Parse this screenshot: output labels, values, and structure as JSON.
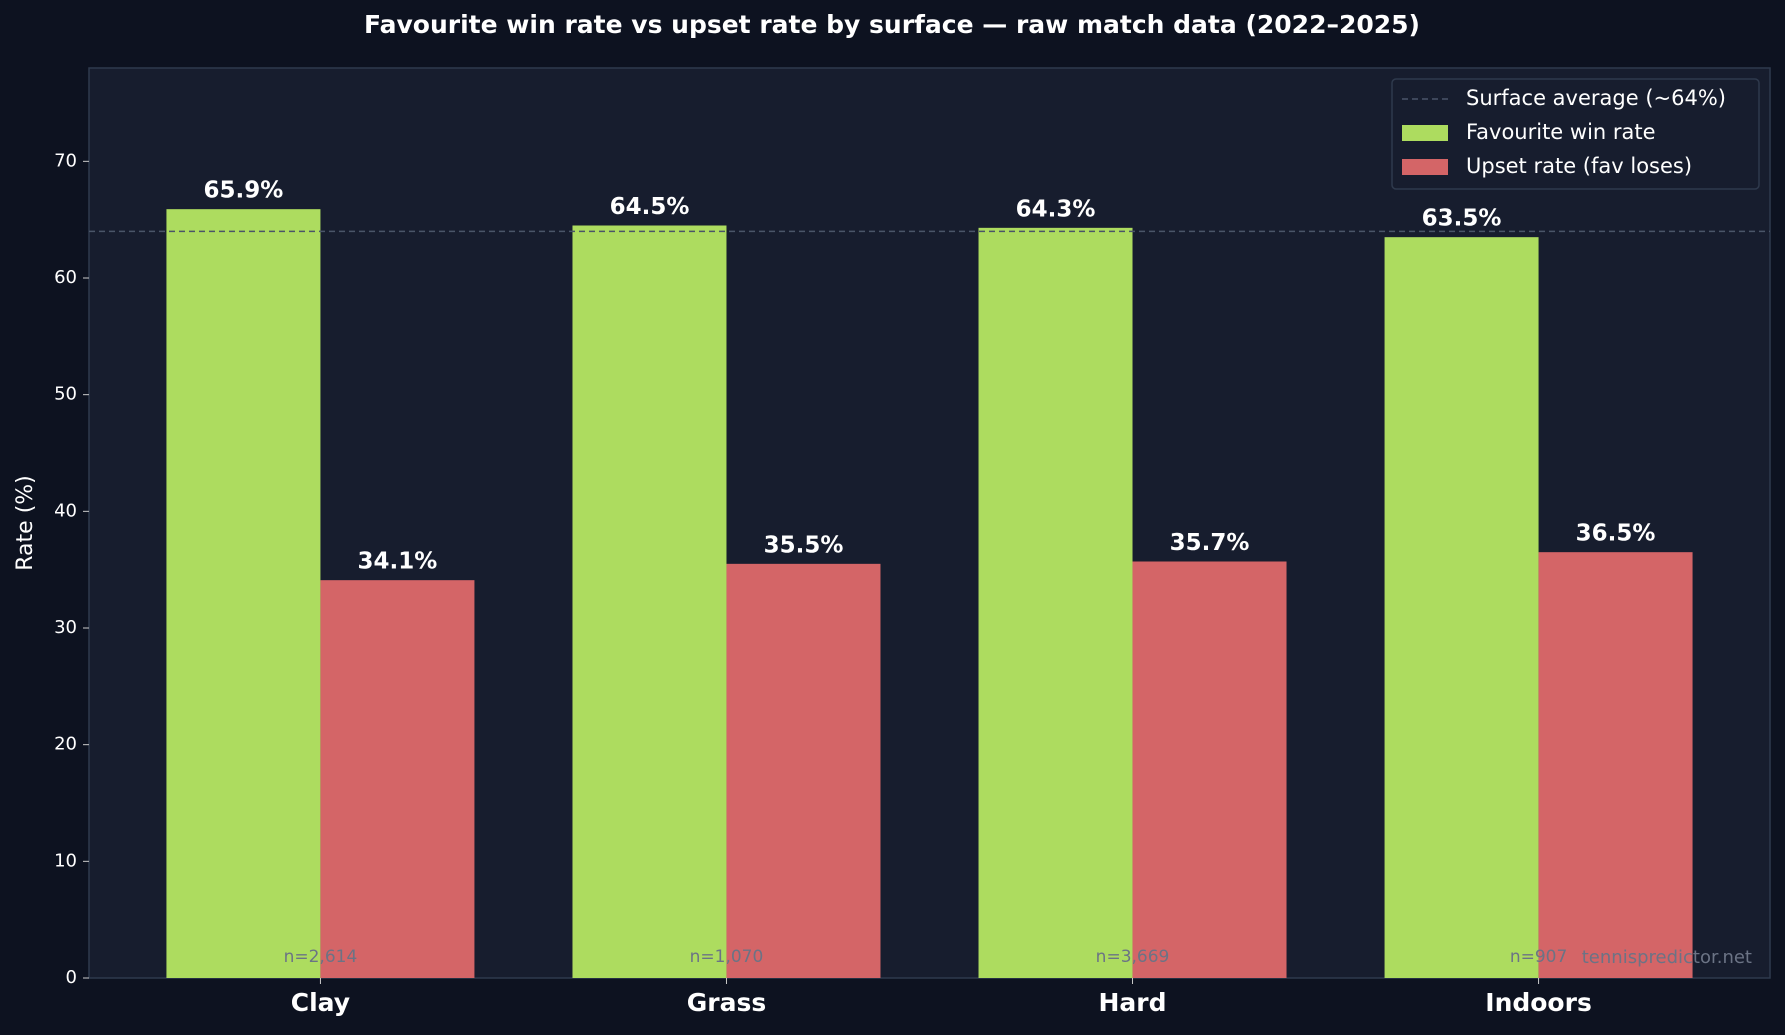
{
  "chart_data": {
    "type": "bar",
    "title": "Favourite win rate vs upset rate by surface — raw match data (2022–2025)",
    "y_label": "Rate (%)",
    "categories": [
      "Clay",
      "Grass",
      "Hard",
      "Indoors"
    ],
    "series": [
      {
        "name": "Favourite win rate",
        "color": "#addc5f",
        "values": [
          65.9,
          64.5,
          64.3,
          63.5
        ],
        "value_labels": [
          "65.9%",
          "64.5%",
          "64.3%",
          "63.5%"
        ]
      },
      {
        "name": "Upset rate (fav loses)",
        "color": "#d46567",
        "values": [
          34.1,
          35.5,
          35.7,
          36.5
        ],
        "value_labels": [
          "34.1%",
          "35.5%",
          "35.7%",
          "36.5%"
        ]
      }
    ],
    "reference_line": {
      "value": 64,
      "label": "Surface average (~64%)",
      "color": "#4a5568"
    },
    "annotations": [
      "n=2,614",
      "n=1,070",
      "n=3,669",
      "n=907"
    ],
    "watermark": "tennispredictor.net",
    "ylim": [
      0,
      78
    ],
    "yticks": [
      0,
      10,
      20,
      30,
      40,
      50,
      60,
      70
    ],
    "grid": false,
    "legend": "upper right"
  }
}
